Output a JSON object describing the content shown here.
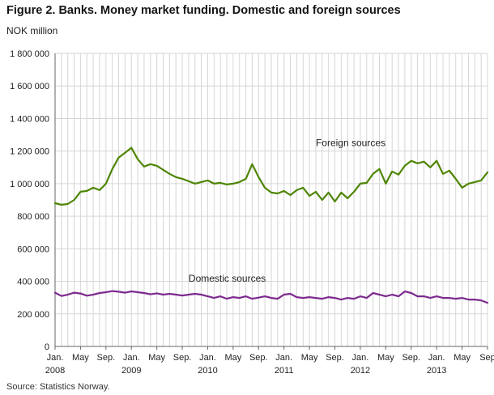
{
  "title": "Figure 2. Banks. Money market funding. Domestic and foreign sources",
  "source": "Source: Statistics Norway.",
  "chart_data": {
    "type": "line",
    "title": "Figure 2. Banks. Money market funding. Domestic and foreign sources",
    "unit_label": "NOK million",
    "ylim": [
      0,
      1800000
    ],
    "ytick_step": 200000,
    "grid": true,
    "legend_position": "inline-annotations",
    "n_months": 69,
    "x_start": "Jan. 2008",
    "x_end": "Sep 2013",
    "xticks": [
      {
        "index": 0,
        "label": "Jan.",
        "year": "2008"
      },
      {
        "index": 4,
        "label": "May"
      },
      {
        "index": 8,
        "label": "Sep."
      },
      {
        "index": 12,
        "label": "Jan.",
        "year": "2009"
      },
      {
        "index": 16,
        "label": "May"
      },
      {
        "index": 20,
        "label": "Sep."
      },
      {
        "index": 24,
        "label": "Jan.",
        "year": "2010"
      },
      {
        "index": 28,
        "label": "May"
      },
      {
        "index": 32,
        "label": "Sep."
      },
      {
        "index": 36,
        "label": "Jan.",
        "year": "2011"
      },
      {
        "index": 40,
        "label": "May"
      },
      {
        "index": 44,
        "label": "Sep."
      },
      {
        "index": 48,
        "label": "Jan.",
        "year": "2012"
      },
      {
        "index": 52,
        "label": "May"
      },
      {
        "index": 56,
        "label": "Sep."
      },
      {
        "index": 60,
        "label": "Jan.",
        "year": "2013"
      },
      {
        "index": 64,
        "label": "May"
      },
      {
        "index": 68,
        "label": "Sep"
      }
    ],
    "series": [
      {
        "name": "Foreign sources",
        "color": "#4e8504",
        "values": [
          880000,
          870000,
          875000,
          900000,
          950000,
          955000,
          975000,
          960000,
          1000000,
          1090000,
          1160000,
          1190000,
          1220000,
          1150000,
          1105000,
          1120000,
          1110000,
          1085000,
          1060000,
          1040000,
          1030000,
          1015000,
          1000000,
          1010000,
          1020000,
          1000000,
          1005000,
          995000,
          1000000,
          1010000,
          1030000,
          1120000,
          1040000,
          975000,
          945000,
          940000,
          955000,
          930000,
          960000,
          975000,
          925000,
          950000,
          900000,
          945000,
          890000,
          945000,
          910000,
          950000,
          1000000,
          1005000,
          1060000,
          1090000,
          1000000,
          1075000,
          1055000,
          1110000,
          1140000,
          1125000,
          1135000,
          1100000,
          1140000,
          1060000,
          1080000,
          1030000,
          975000,
          1000000,
          1010000,
          1020000,
          1070000
        ]
      },
      {
        "name": "Domestic sources",
        "color": "#7d2a8e",
        "values": [
          330000,
          310000,
          318000,
          330000,
          325000,
          312000,
          318000,
          328000,
          333000,
          340000,
          336000,
          330000,
          338000,
          333000,
          328000,
          320000,
          326000,
          318000,
          323000,
          318000,
          313000,
          318000,
          323000,
          318000,
          308000,
          298000,
          308000,
          293000,
          303000,
          298000,
          308000,
          293000,
          300000,
          308000,
          298000,
          293000,
          318000,
          323000,
          303000,
          298000,
          303000,
          298000,
          293000,
          303000,
          298000,
          288000,
          298000,
          293000,
          308000,
          298000,
          328000,
          318000,
          308000,
          318000,
          308000,
          338000,
          328000,
          308000,
          308000,
          298000,
          308000,
          298000,
          298000,
          293000,
          298000,
          288000,
          288000,
          283000,
          268000
        ]
      }
    ],
    "annotations": [
      {
        "text": "Foreign sources",
        "month_index": 41,
        "value": 1230000
      },
      {
        "text": "Domestic sources",
        "month_index": 21,
        "value": 398000
      }
    ]
  }
}
